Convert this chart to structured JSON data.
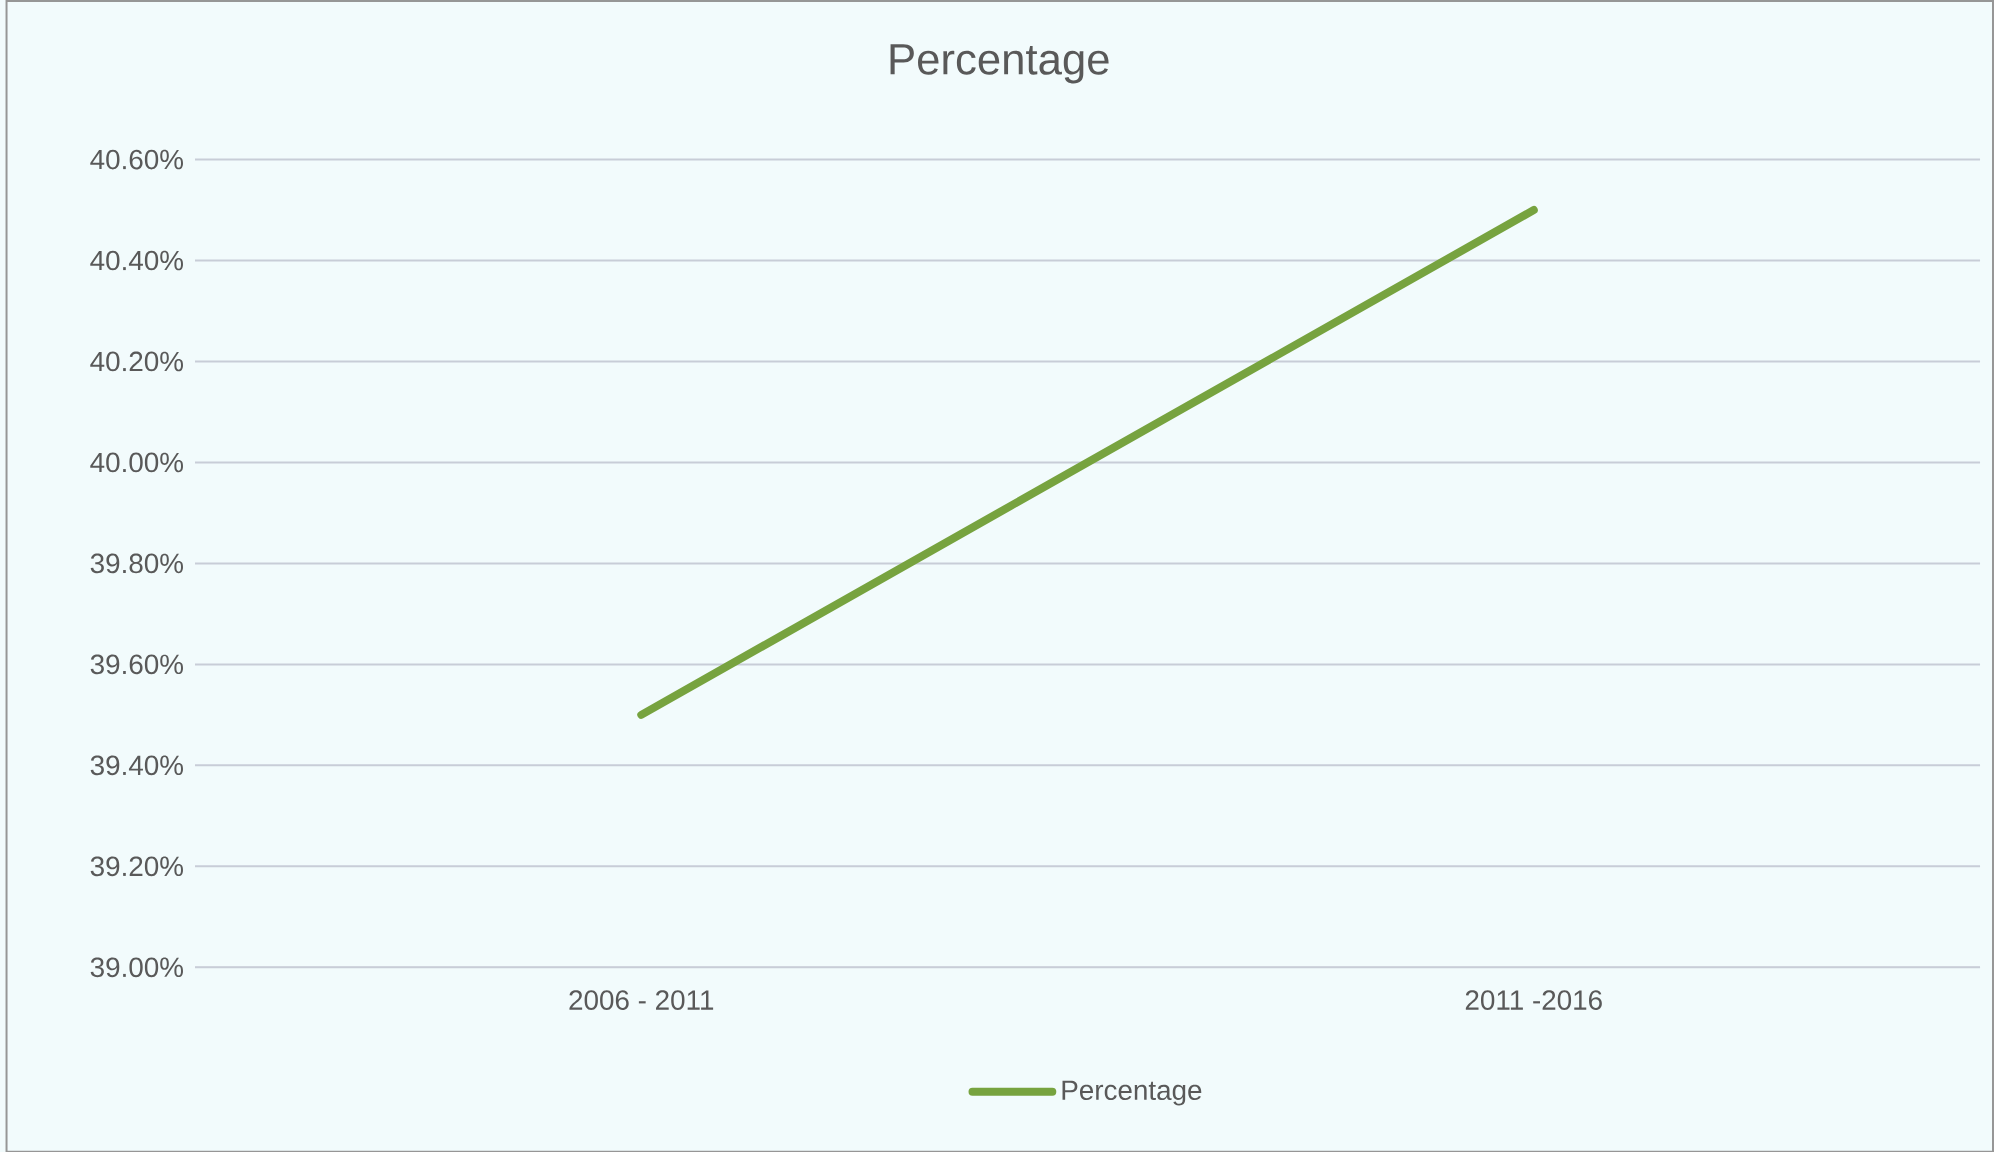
{
  "chart_data": {
    "type": "line",
    "title": "Percentage",
    "categories": [
      "2006 - 2011",
      "2011 -2016"
    ],
    "series": [
      {
        "name": "Percentage",
        "color": "#77a33f",
        "values": [
          39.5,
          40.5
        ]
      }
    ],
    "ylim": [
      39.0,
      40.6
    ],
    "yticks": [
      {
        "value": 39.0,
        "label": "39.00%"
      },
      {
        "value": 39.2,
        "label": "39.20%"
      },
      {
        "value": 39.4,
        "label": "39.40%"
      },
      {
        "value": 39.6,
        "label": "39.60%"
      },
      {
        "value": 39.8,
        "label": "39.80%"
      },
      {
        "value": 40.0,
        "label": "40.00%"
      },
      {
        "value": 40.2,
        "label": "40.20%"
      },
      {
        "value": 40.4,
        "label": "40.40%"
      },
      {
        "value": 40.6,
        "label": "40.60%"
      }
    ],
    "grid": "y",
    "legend": "bottom",
    "marker": "none",
    "line_style": "solid"
  }
}
